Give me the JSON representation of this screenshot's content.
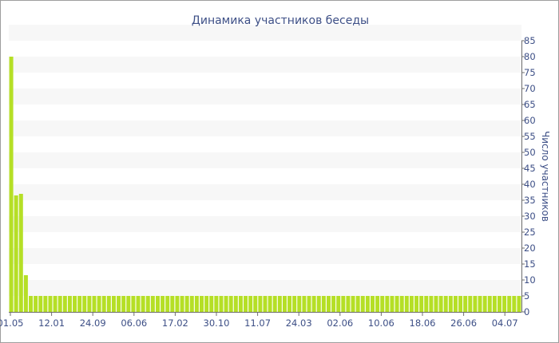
{
  "chart_data": {
    "type": "bar",
    "title": "Динамика участников беседы",
    "ylabel": "Число участников",
    "xlabel": "",
    "ylim": [
      0,
      85
    ],
    "y_ticks": [
      0,
      5,
      10,
      15,
      20,
      25,
      30,
      35,
      40,
      45,
      50,
      55,
      60,
      65,
      70,
      75,
      80,
      85
    ],
    "y_axis_side": "right",
    "grid": "alternating horizontal bands",
    "legend": "none",
    "x_tick_labels": [
      "01.05",
      "12.01",
      "24.09",
      "06.06",
      "17.02",
      "30.10",
      "11.07",
      "24.03",
      "02.06",
      "10.06",
      "18.06",
      "26.06",
      "04.07"
    ],
    "values": [
      80,
      36.5,
      37,
      11.5,
      5,
      5,
      5,
      5,
      5,
      5,
      5,
      5,
      5,
      5,
      5,
      5,
      5,
      5,
      5,
      5,
      5,
      5,
      5,
      5,
      5,
      5,
      5,
      5,
      5,
      5,
      5,
      5,
      5,
      5,
      5,
      5,
      5,
      5,
      5,
      5,
      5,
      5,
      5,
      5,
      5,
      5,
      5,
      5,
      5,
      5,
      5,
      5,
      5,
      5,
      5,
      5,
      5,
      5,
      5,
      5,
      5,
      5,
      5,
      5,
      5,
      5,
      5,
      5,
      5,
      5,
      5,
      5,
      5,
      5,
      5,
      5,
      5,
      5,
      5,
      5,
      5,
      5,
      5,
      5,
      5,
      5,
      5,
      5,
      5,
      5,
      5,
      5,
      5,
      5,
      5,
      5,
      5,
      5,
      5,
      5,
      5,
      5,
      5,
      5,
      5
    ],
    "colors": {
      "bar": "#b5df26",
      "band": "#f7f7f7",
      "text": "#3d4f86",
      "axis": "#6d6d6d",
      "frame": "#9e9e9e"
    }
  }
}
